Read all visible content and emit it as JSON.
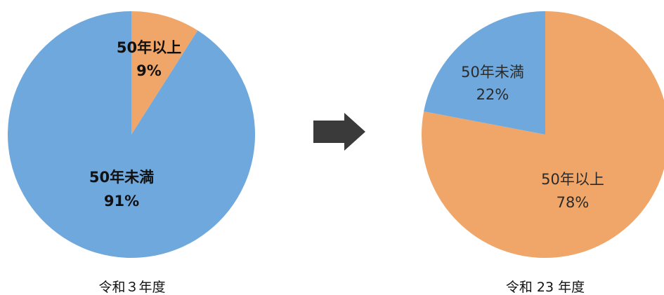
{
  "colors": {
    "under_50": "#6fa8dc",
    "over_50": "#f0a668",
    "arrow": "#3a3a3a"
  },
  "icon": "right-arrow-icon",
  "chart_data": [
    {
      "type": "pie",
      "caption": "令和３年度",
      "slices": [
        {
          "name": "50年以上",
          "value": 9,
          "label": "9%",
          "color": "#f0a668"
        },
        {
          "name": "50年未満",
          "value": 91,
          "label": "91%",
          "color": "#6fa8dc"
        }
      ]
    },
    {
      "type": "pie",
      "caption": "令和 23 年度",
      "slices": [
        {
          "name": "50年以上",
          "value": 78,
          "label": "78%",
          "color": "#f0a668"
        },
        {
          "name": "50年未満",
          "value": 22,
          "label": "22%",
          "color": "#6fa8dc"
        }
      ]
    }
  ]
}
